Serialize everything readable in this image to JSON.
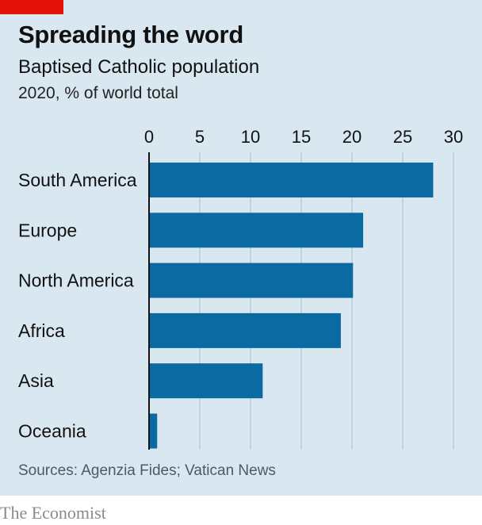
{
  "header": {
    "title": "Spreading the word",
    "subtitle": "Baptised Catholic population",
    "unit": "2020, % of world total"
  },
  "footer": {
    "source": "Sources: Agenzia Fides; Vatican News",
    "brand": "The Economist"
  },
  "colors": {
    "background": "#d9e7f0",
    "bar": "#0b6aa1",
    "accent": "#e3120b",
    "gridline": "#a9bfce"
  },
  "chart_data": {
    "type": "bar",
    "orientation": "horizontal",
    "title": "Spreading the word",
    "subtitle": "Baptised Catholic population",
    "xlabel": "2020, % of world total",
    "ylabel": "",
    "categories": [
      "South America",
      "Europe",
      "North America",
      "Africa",
      "Asia",
      "Oceania"
    ],
    "values": [
      28.0,
      21.1,
      20.1,
      18.9,
      11.2,
      0.8
    ],
    "xlim": [
      0,
      30
    ],
    "ticks": [
      0,
      5,
      10,
      15,
      20,
      25,
      30
    ],
    "grid": true,
    "legend": "none"
  }
}
